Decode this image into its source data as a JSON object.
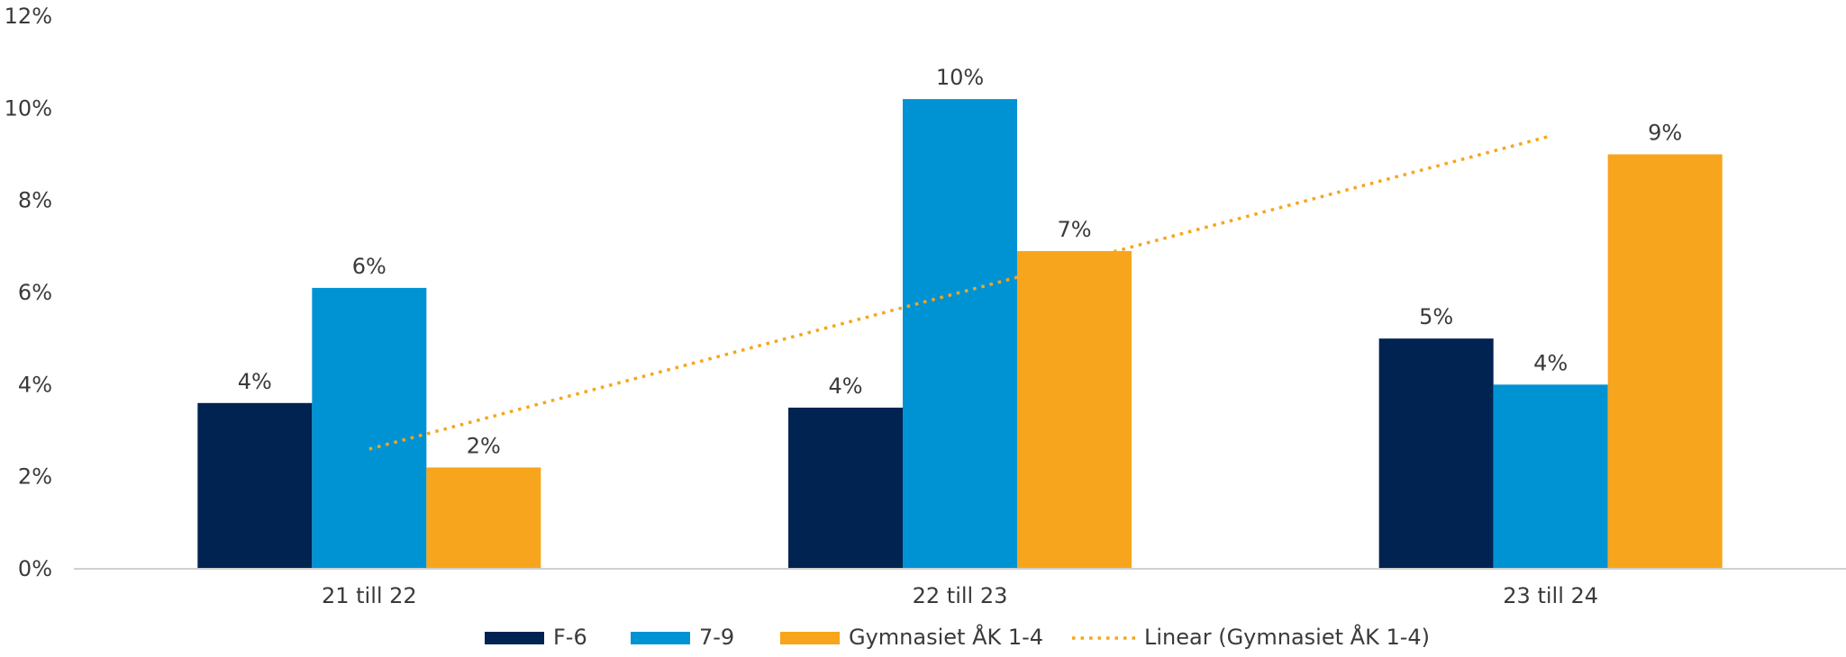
{
  "chart_data": {
    "type": "bar",
    "categories": [
      "21 till 22",
      "22 till 23",
      "23 till 24"
    ],
    "series": [
      {
        "name": "F-6",
        "color": "#002352",
        "values": [
          3.6,
          3.5,
          5.0
        ],
        "labels": [
          "4%",
          "4%",
          "5%"
        ]
      },
      {
        "name": "7-9",
        "color": "#0093d4",
        "values": [
          6.1,
          10.2,
          4.0
        ],
        "labels": [
          "6%",
          "10%",
          "4%"
        ]
      },
      {
        "name": "Gymnasiet ÅK 1-4",
        "color": "#f7a51c",
        "values": [
          2.2,
          6.9,
          9.0
        ],
        "labels": [
          "2%",
          "7%",
          "9%"
        ]
      }
    ],
    "trendline": {
      "name": "Linear (Gymnasiet ÅK 1-4)",
      "color": "#f7a51c",
      "style": "dotted",
      "values": [
        2.6,
        6.0,
        9.4
      ]
    },
    "yticks": [
      "0%",
      "2%",
      "4%",
      "6%",
      "8%",
      "10%",
      "12%"
    ],
    "ylim": [
      0,
      12
    ],
    "grid": false,
    "legend": "bottom"
  }
}
